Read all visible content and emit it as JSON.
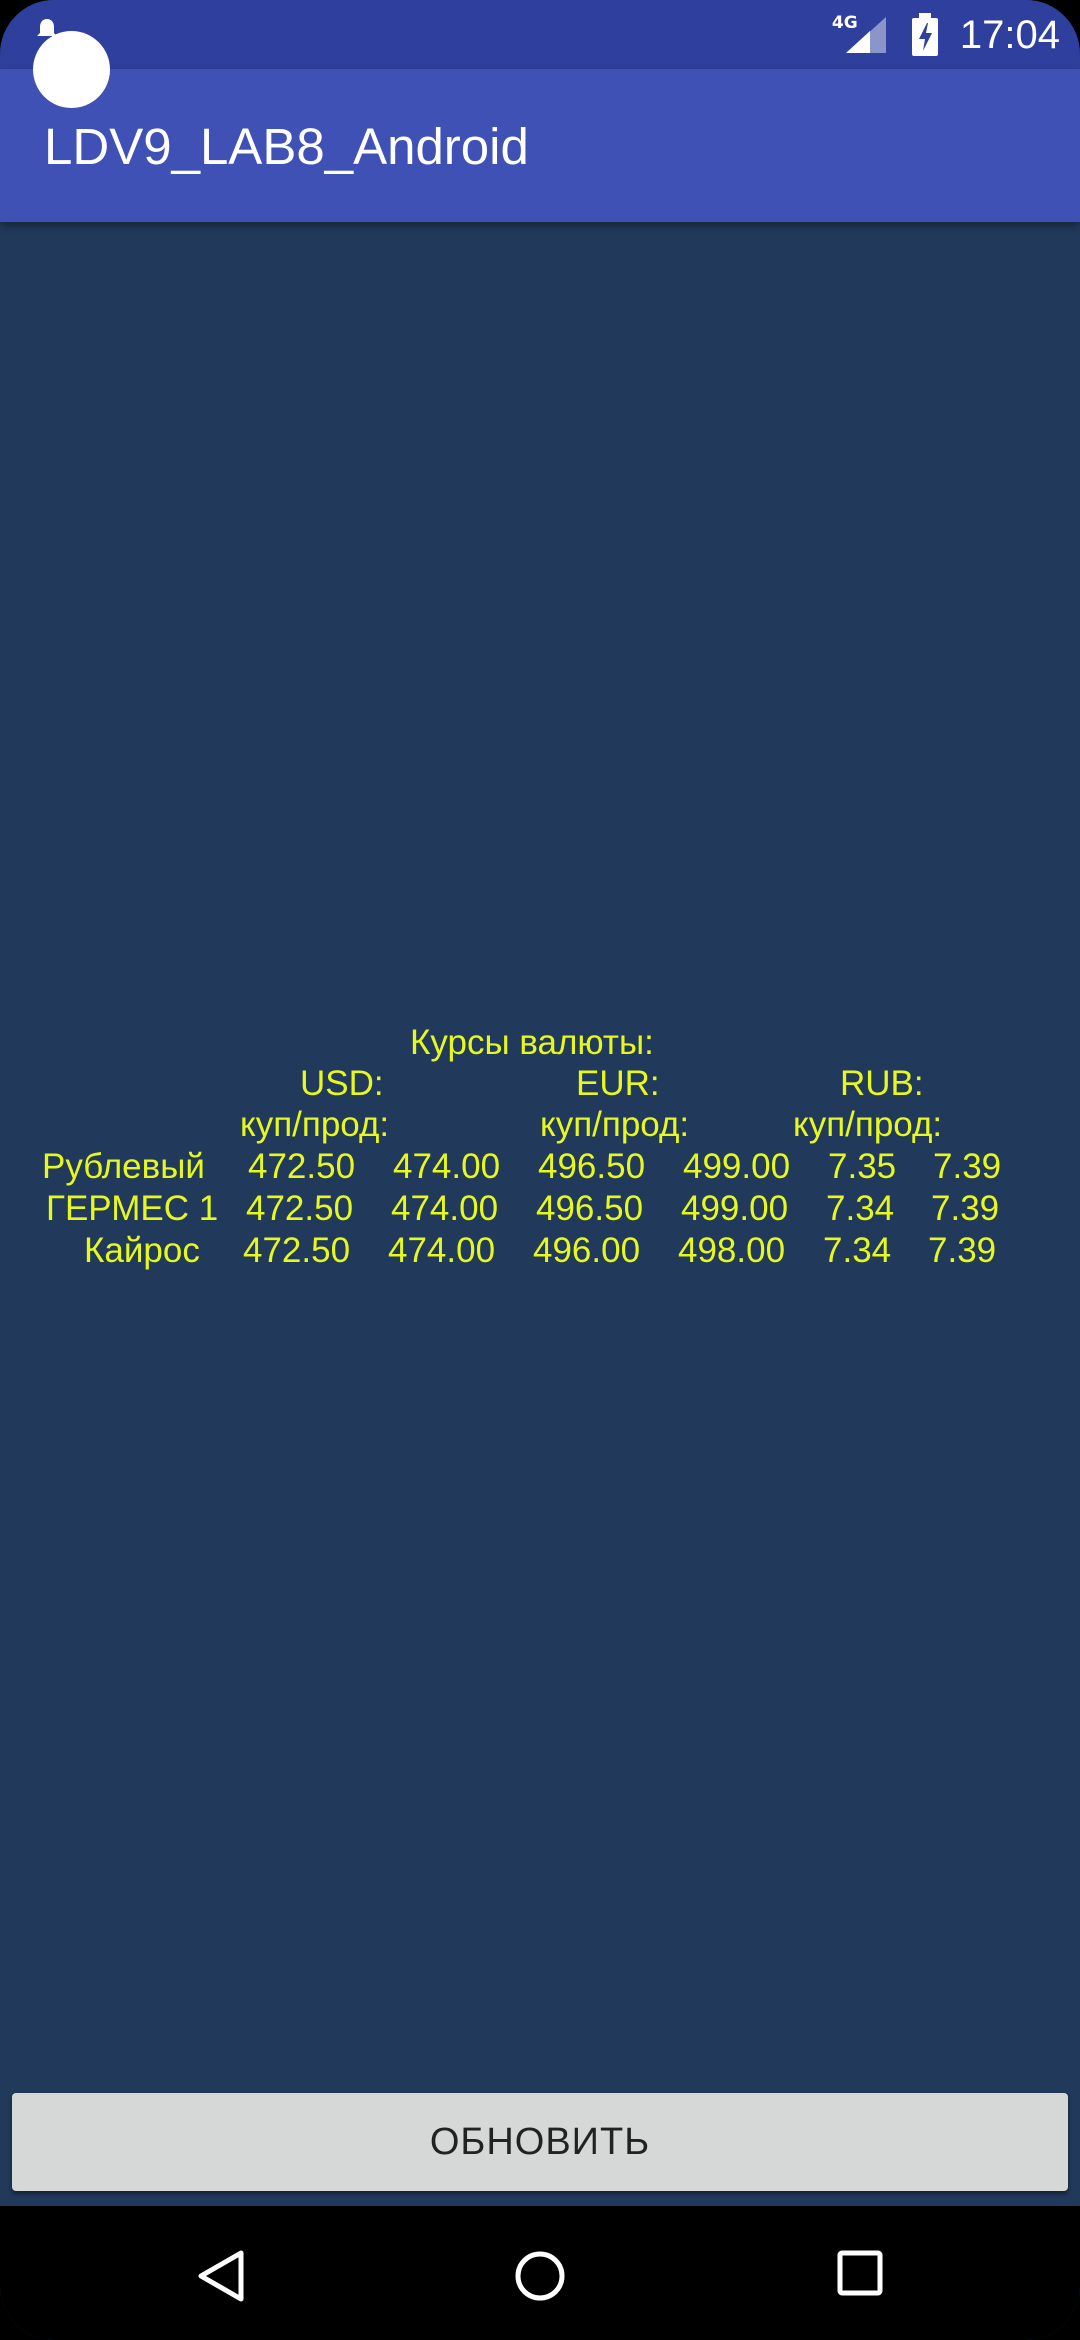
{
  "status_bar": {
    "network": "4G",
    "time": "17:04",
    "icons": [
      "notification-icon",
      "signal-icon",
      "battery-charging-icon"
    ]
  },
  "app_bar": {
    "title": "LDV9_LAB8_Android"
  },
  "rates": {
    "title": "Курсы валюты:",
    "currencies": [
      {
        "code": "USD:",
        "sub": "куп/прод:"
      },
      {
        "code": "EUR:",
        "sub": "куп/прод:"
      },
      {
        "code": "RUB:",
        "sub": "куп/прод:"
      }
    ],
    "rows": [
      {
        "name": "Рублевый",
        "values": [
          "472.50",
          "474.00",
          "496.50",
          "499.00",
          "7.35",
          "7.39"
        ]
      },
      {
        "name": "ГЕРМЕС 1",
        "values": [
          "472.50",
          "474.00",
          "496.50",
          "499.00",
          "7.34",
          "7.39"
        ]
      },
      {
        "name": "Кайрос",
        "values": [
          "472.50",
          "474.00",
          "496.00",
          "498.00",
          "7.34",
          "7.39"
        ]
      }
    ]
  },
  "actions": {
    "refresh_label": "ОБНОВИТЬ"
  },
  "nav_bar": {
    "icons": [
      "back-icon",
      "home-icon",
      "recents-icon"
    ]
  },
  "colors": {
    "status_bar": "#2e3f9d",
    "app_bar": "#3f51b5",
    "background": "#213a5b",
    "rates_text": "#e6f81e",
    "button": "#d6d7d7"
  }
}
